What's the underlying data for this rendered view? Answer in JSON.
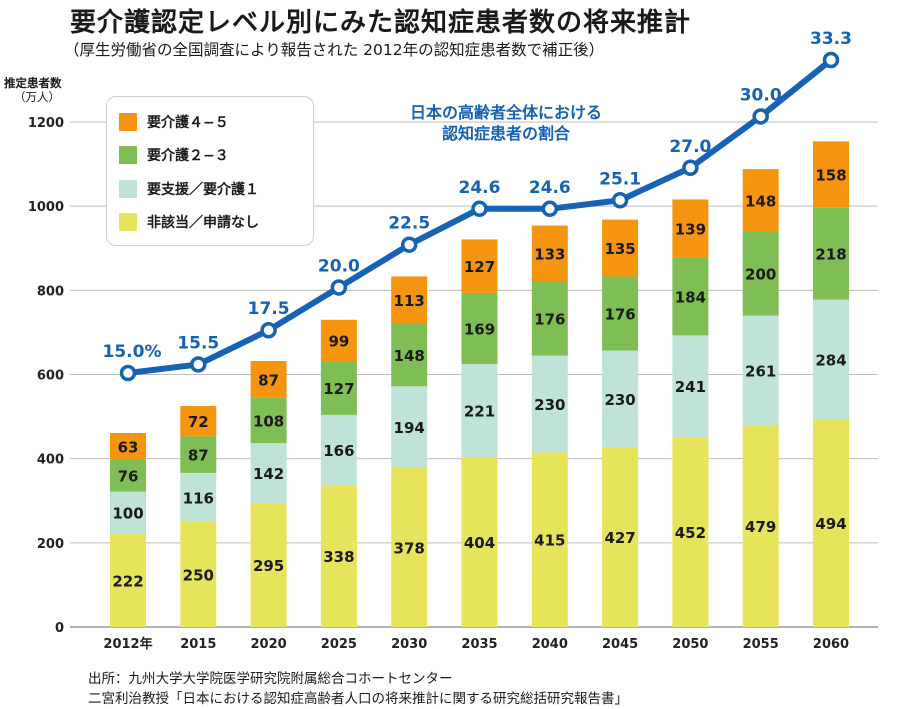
{
  "title": "要介護認定レベル別にみた認知症患者数の将来推計",
  "subtitle": "（厚生労働省の全国調査により報告された 2012年の認知症患者数で補正後）",
  "y_axis_label": "推定患者数",
  "y_axis_unit": "（万人）",
  "line_label_1": "日本の高齢者全体における",
  "line_label_2": "認知症患者の割合",
  "source_line_1": "出所：九州大学大学院医学研究院附属総合コホートセンター",
  "source_line_2": "二宮利治教授「日本における認知症高齢者人口の将来推計に関する研究総括研究報告書」",
  "legend": [
    {
      "label": "要介護４−５",
      "color": "#f5950f"
    },
    {
      "label": "要介護２−３",
      "color": "#7fbd55"
    },
    {
      "label": "要支援／要介護１",
      "color": "#bfe3d8"
    },
    {
      "label": "非該当／申請なし",
      "color": "#e6e45a"
    }
  ],
  "chart_data": {
    "type": "bar",
    "stacked": true,
    "categories": [
      "2012年",
      "2015",
      "2020",
      "2025",
      "2030",
      "2035",
      "2040",
      "2045",
      "2050",
      "2055",
      "2060"
    ],
    "series": [
      {
        "name": "非該当／申請なし",
        "color": "#e6e45a",
        "values": [
          222,
          250,
          295,
          338,
          378,
          404,
          415,
          427,
          452,
          479,
          494
        ]
      },
      {
        "name": "要支援／要介護１",
        "color": "#bfe3d8",
        "values": [
          100,
          116,
          142,
          166,
          194,
          221,
          230,
          230,
          241,
          261,
          284
        ]
      },
      {
        "name": "要介護２−３",
        "color": "#7fbd55",
        "values": [
          76,
          87,
          108,
          127,
          148,
          169,
          176,
          176,
          184,
          200,
          218
        ]
      },
      {
        "name": "要介護４−５",
        "color": "#f5950f",
        "values": [
          63,
          72,
          87,
          99,
          113,
          127,
          133,
          135,
          139,
          148,
          158
        ]
      }
    ],
    "line": {
      "name": "日本の高齢者全体における認知症患者の割合",
      "labels": [
        "15.0%",
        "15.5",
        "17.5",
        "20.0",
        "22.5",
        "24.6",
        "24.6",
        "25.1",
        "27.0",
        "30.0",
        "33.3"
      ],
      "values": [
        15.0,
        15.5,
        17.5,
        20.0,
        22.5,
        24.6,
        24.6,
        25.1,
        27.0,
        30.0,
        33.3
      ],
      "color": "#1662b4"
    },
    "y_ticks": [
      0,
      200,
      400,
      600,
      800,
      1000,
      1200
    ],
    "ylim": [
      0,
      1200
    ],
    "grid": true,
    "legend_position": "top-left"
  }
}
